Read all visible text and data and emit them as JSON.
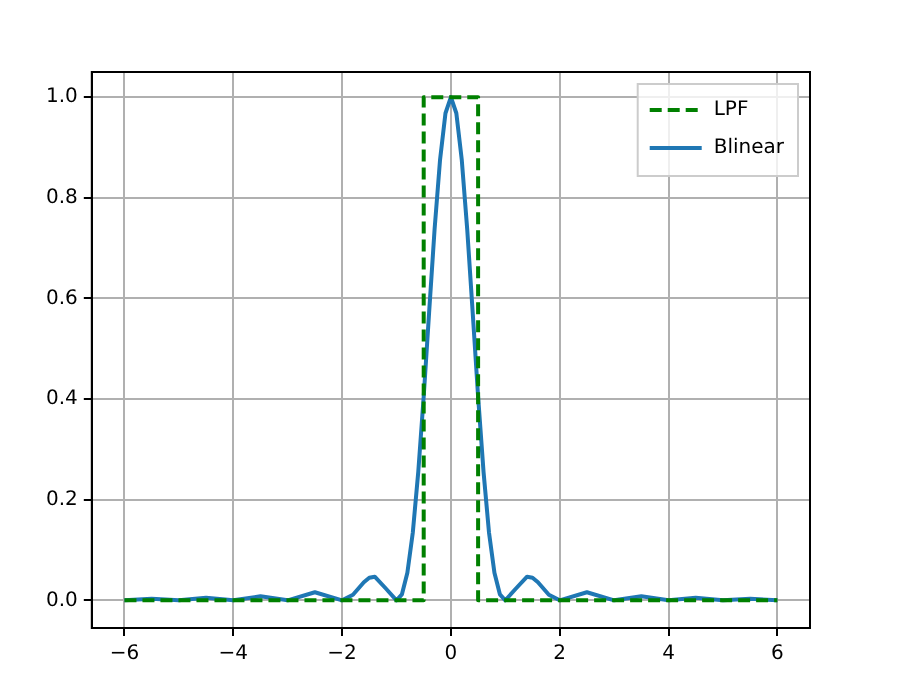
{
  "chart_data": {
    "type": "line",
    "xlim": [
      -6.6,
      6.6
    ],
    "ylim": [
      -0.055,
      1.05
    ],
    "xticks": [
      {
        "value": -6,
        "label": "−6"
      },
      {
        "value": -4,
        "label": "−4"
      },
      {
        "value": -2,
        "label": "−2"
      },
      {
        "value": 0,
        "label": "0"
      },
      {
        "value": 2,
        "label": "2"
      },
      {
        "value": 4,
        "label": "4"
      },
      {
        "value": 6,
        "label": "6"
      }
    ],
    "yticks": [
      {
        "value": 0,
        "label": "0.0"
      },
      {
        "value": 0.2,
        "label": "0.2"
      },
      {
        "value": 0.4,
        "label": "0.4"
      },
      {
        "value": 0.6,
        "label": "0.6"
      },
      {
        "value": 0.8,
        "label": "0.8"
      },
      {
        "value": 1,
        "label": "1.0"
      }
    ],
    "grid": true,
    "legend": "top right",
    "marker": "none",
    "series": [
      {
        "name": "LPF",
        "color": "#008000",
        "line_style": "dashed",
        "x": [
          -6,
          -0.5,
          -0.5,
          0.5,
          0.5,
          6
        ],
        "values": [
          0,
          0,
          1,
          1,
          0,
          0
        ]
      },
      {
        "name": "Blinear",
        "color": "#1f77b4",
        "line_style": "solid",
        "x": [
          -6,
          -5.5,
          -5,
          -4.5,
          -4,
          -3.5,
          -3,
          -2.5,
          -2,
          -1.8,
          -1.6,
          -1.5,
          -1.4,
          -1.2,
          -1,
          -0.9,
          -0.8,
          -0.7,
          -0.6,
          -0.5,
          -0.4,
          -0.3,
          -0.2,
          -0.1,
          0,
          0.1,
          0.2,
          0.3,
          0.4,
          0.5,
          0.6,
          0.7,
          0.8,
          0.9,
          1,
          1.2,
          1.4,
          1.5,
          1.6,
          1.8,
          2,
          2.5,
          3,
          3.5,
          4,
          4.5,
          5,
          5.5,
          6
        ],
        "values": [
          0,
          0.003,
          0,
          0.005,
          0,
          0.008,
          0,
          0.016,
          0,
          0.011,
          0.036,
          0.045,
          0.047,
          0.024,
          0,
          0.012,
          0.055,
          0.135,
          0.255,
          0.405,
          0.573,
          0.737,
          0.875,
          0.968,
          1,
          0.968,
          0.875,
          0.737,
          0.573,
          0.405,
          0.255,
          0.135,
          0.055,
          0.012,
          0,
          0.024,
          0.047,
          0.045,
          0.036,
          0.011,
          0,
          0.016,
          0,
          0.008,
          0,
          0.005,
          0,
          0.003,
          0
        ]
      }
    ]
  }
}
